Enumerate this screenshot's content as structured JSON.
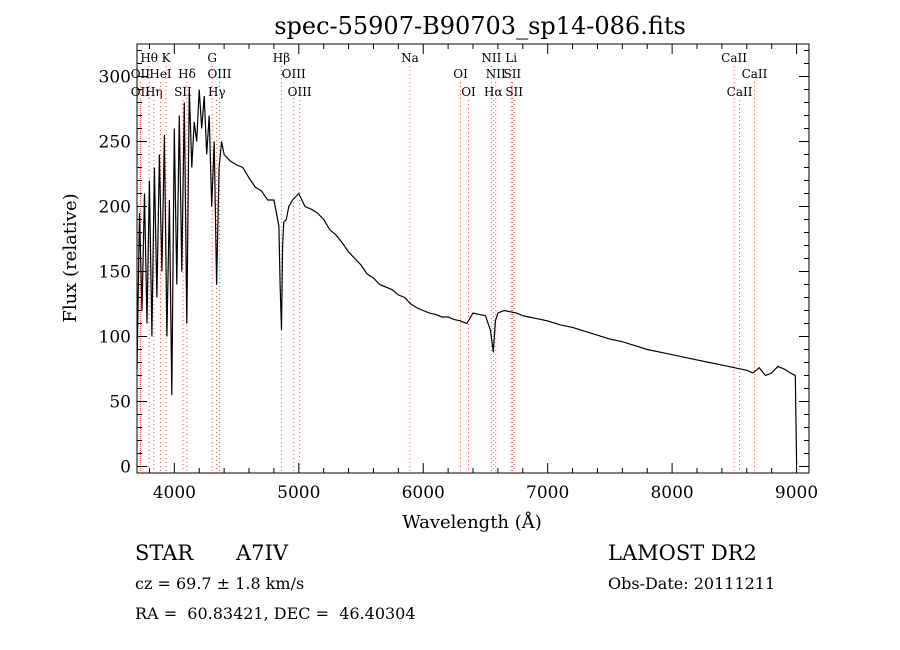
{
  "chart_data": {
    "type": "line",
    "title": "spec-55907-B90703_sp14-086.fits",
    "xlabel": "Wavelength (Å)",
    "ylabel": "Flux (relative)",
    "xlim": [
      3700,
      9100
    ],
    "ylim": [
      -5,
      325
    ],
    "xticks": [
      4000,
      5000,
      6000,
      7000,
      8000,
      9000
    ],
    "yticks": [
      0,
      50,
      100,
      150,
      200,
      250,
      300
    ],
    "series": [
      {
        "name": "flux",
        "x": [
          3700,
          3720,
          3740,
          3760,
          3780,
          3800,
          3820,
          3840,
          3860,
          3880,
          3900,
          3920,
          3940,
          3960,
          3980,
          4000,
          4020,
          4040,
          4060,
          4080,
          4100,
          4120,
          4140,
          4160,
          4180,
          4200,
          4220,
          4240,
          4260,
          4280,
          4300,
          4320,
          4340,
          4360,
          4380,
          4400,
          4450,
          4500,
          4550,
          4600,
          4650,
          4700,
          4750,
          4800,
          4840,
          4850,
          4861,
          4870,
          4880,
          4900,
          4920,
          4950,
          5000,
          5050,
          5100,
          5150,
          5200,
          5250,
          5300,
          5350,
          5400,
          5450,
          5500,
          5550,
          5600,
          5650,
          5700,
          5750,
          5800,
          5850,
          5900,
          5950,
          6000,
          6050,
          6100,
          6150,
          6200,
          6250,
          6300,
          6350,
          6400,
          6450,
          6500,
          6540,
          6563,
          6580,
          6600,
          6650,
          6700,
          6750,
          6800,
          6850,
          6900,
          6950,
          7000,
          7100,
          7200,
          7300,
          7400,
          7500,
          7600,
          7700,
          7800,
          7900,
          8000,
          8100,
          8200,
          8300,
          8400,
          8500,
          8600,
          8650,
          8700,
          8750,
          8800,
          8850,
          8900,
          8950,
          8990,
          9000
        ],
        "values": [
          75,
          195,
          120,
          210,
          110,
          220,
          100,
          230,
          130,
          240,
          150,
          255,
          100,
          205,
          55,
          260,
          140,
          270,
          150,
          280,
          110,
          290,
          230,
          265,
          250,
          290,
          260,
          285,
          240,
          270,
          200,
          250,
          140,
          230,
          250,
          240,
          235,
          232,
          230,
          222,
          215,
          212,
          205,
          205,
          185,
          140,
          105,
          170,
          188,
          190,
          200,
          205,
          210,
          200,
          198,
          195,
          190,
          182,
          178,
          172,
          165,
          160,
          155,
          148,
          145,
          140,
          138,
          136,
          132,
          130,
          125,
          122,
          120,
          118,
          117,
          115,
          115,
          113,
          112,
          110,
          118,
          117,
          116,
          105,
          88,
          112,
          118,
          120,
          119,
          118,
          116,
          115,
          114,
          113,
          112,
          109,
          107,
          104,
          101,
          98,
          96,
          93,
          90,
          88,
          86,
          84,
          82,
          80,
          78,
          76,
          74,
          72,
          76,
          70,
          72,
          77,
          75,
          72,
          70,
          2
        ]
      }
    ],
    "lines": [
      {
        "name": "Hθ",
        "wave": 3798,
        "row": 1
      },
      {
        "name": "OII",
        "wave": 3727,
        "row": 2
      },
      {
        "name": "OII",
        "wave": 3727,
        "row": 3
      },
      {
        "name": "Hη",
        "wave": 3835,
        "row": 3
      },
      {
        "name": "K",
        "wave": 3934,
        "row": 1
      },
      {
        "name": "HeI",
        "wave": 3889,
        "row": 2
      },
      {
        "name": "Hδ",
        "wave": 4102,
        "row": 2
      },
      {
        "name": "SII",
        "wave": 4069,
        "row": 3
      },
      {
        "name": "G",
        "wave": 4304,
        "row": 1
      },
      {
        "name": "OIII",
        "wave": 4363,
        "row": 2
      },
      {
        "name": "Hγ",
        "wave": 4341,
        "row": 3
      },
      {
        "name": "Hβ",
        "wave": 4861,
        "row": 1
      },
      {
        "name": "OIII",
        "wave": 4959,
        "row": 2
      },
      {
        "name": "OIII",
        "wave": 5007,
        "row": 3
      },
      {
        "name": "Na",
        "wave": 5893,
        "row": 1
      },
      {
        "name": "OI",
        "wave": 6300,
        "row": 2
      },
      {
        "name": "OI",
        "wave": 6364,
        "row": 3
      },
      {
        "name": "NII",
        "wave": 6548,
        "row": 1
      },
      {
        "name": "NII",
        "wave": 6583,
        "row": 2
      },
      {
        "name": "Hα",
        "wave": 6563,
        "row": 3
      },
      {
        "name": "Li",
        "wave": 6707,
        "row": 1
      },
      {
        "name": "SII",
        "wave": 6716,
        "row": 2
      },
      {
        "name": "SII",
        "wave": 6731,
        "row": 3
      },
      {
        "name": "CaII",
        "wave": 8498,
        "row": 1
      },
      {
        "name": "CaII",
        "wave": 8662,
        "row": 2
      },
      {
        "name": "CaII",
        "wave": 8542,
        "row": 3
      }
    ]
  },
  "info": {
    "object_type": "STAR",
    "subclass": "A7IV",
    "survey": "LAMOST DR2",
    "cz": "cz = 69.7 ± 1.8 km/s",
    "obs_date": "Obs-Date: 20111211",
    "coords": "RA =  60.83421, DEC =  46.40304"
  }
}
